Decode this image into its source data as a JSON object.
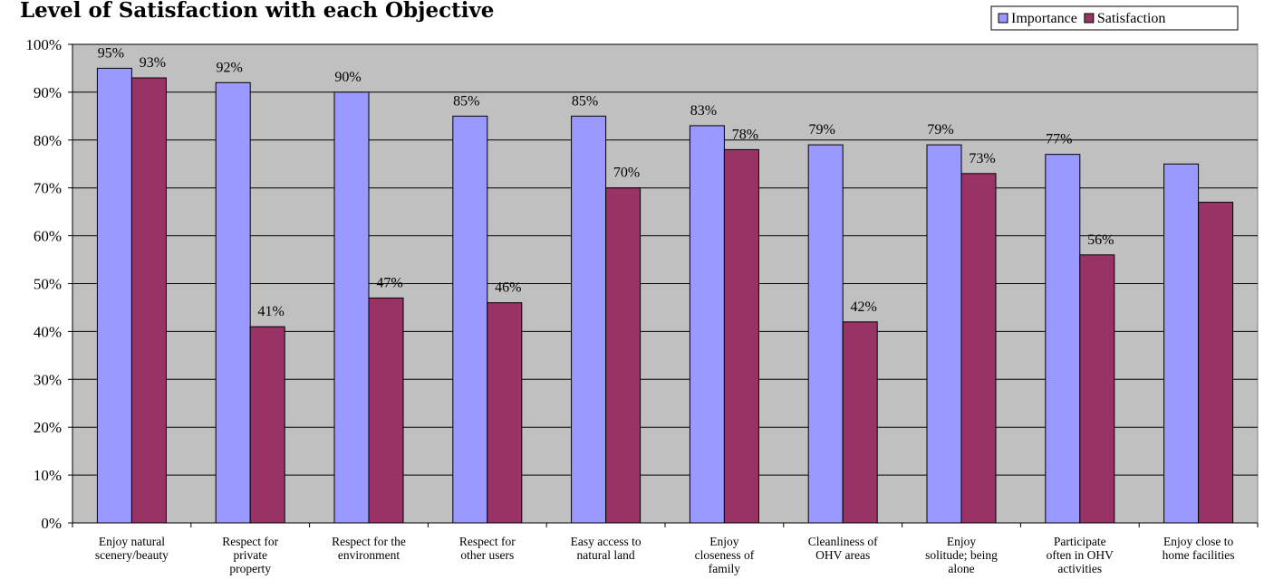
{
  "chart_data": {
    "type": "bar",
    "title": "Level of Satisfaction with each Objective",
    "xlabel": "",
    "ylabel": "",
    "ylim": [
      0,
      100
    ],
    "yticks": [
      "0%",
      "10%",
      "20%",
      "30%",
      "40%",
      "50%",
      "60%",
      "70%",
      "80%",
      "90%",
      "100%"
    ],
    "grid": true,
    "legend_position": "top-right",
    "categories": [
      [
        "Enjoy natural",
        "scenery/beauty"
      ],
      [
        "Respect for",
        "private",
        "property"
      ],
      [
        "Respect for the",
        "environment"
      ],
      [
        "Respect for",
        "other users"
      ],
      [
        "Easy access to",
        "natural land"
      ],
      [
        "Enjoy",
        "closeness of",
        "family"
      ],
      [
        "Cleanliness of",
        "OHV areas"
      ],
      [
        "Enjoy",
        "solitude; being",
        "alone"
      ],
      [
        "Participate",
        "often in OHV",
        "activities"
      ],
      [
        "Enjoy close to",
        "home facilities"
      ]
    ],
    "series": [
      {
        "name": "Importance",
        "color": "#9999FF",
        "values": [
          95,
          92,
          90,
          85,
          85,
          83,
          79,
          79,
          77,
          75
        ],
        "labels": [
          "95%",
          "92%",
          "90%",
          "85%",
          "85%",
          "83%",
          "79%",
          "79%",
          "77%",
          ""
        ]
      },
      {
        "name": "Satisfaction",
        "color": "#993366",
        "values": [
          93,
          41,
          47,
          46,
          70,
          78,
          42,
          73,
          56,
          67
        ],
        "labels": [
          "93%",
          "41%",
          "47%",
          "46%",
          "70%",
          "78%",
          "42%",
          "73%",
          "56%",
          ""
        ]
      }
    ],
    "plot_background": "#C0C0C0"
  }
}
